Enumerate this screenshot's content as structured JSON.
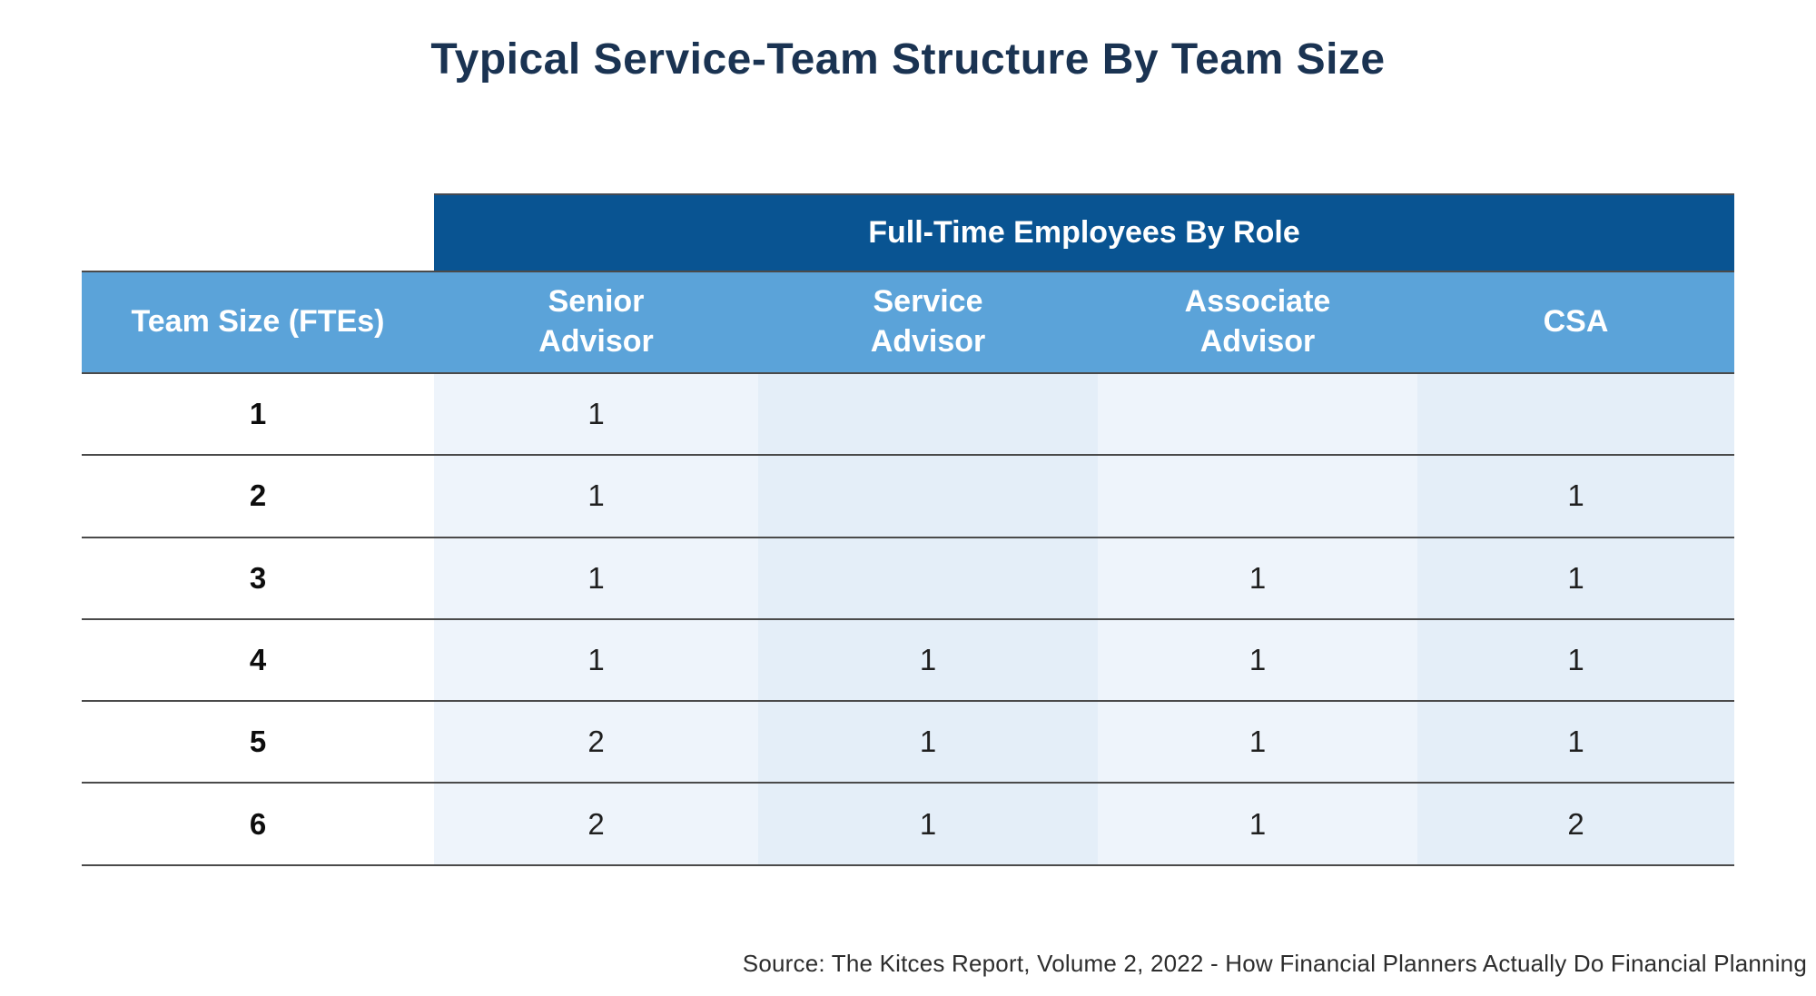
{
  "title": "Typical Service-Team Structure By Team Size",
  "chart_data": {
    "type": "table",
    "title": "Typical Service-Team Structure By Team Size",
    "group_header": "Full-Time Employees By Role",
    "columns": [
      "Team Size (FTEs)",
      "Senior\nAdvisor",
      "Service\nAdvisor",
      "Associate\nAdvisor",
      "CSA"
    ],
    "rows": [
      [
        "1",
        "1",
        "",
        "",
        ""
      ],
      [
        "2",
        "1",
        "",
        "",
        "1"
      ],
      [
        "3",
        "1",
        "",
        "1",
        "1"
      ],
      [
        "4",
        "1",
        "1",
        "1",
        "1"
      ],
      [
        "5",
        "2",
        "1",
        "1",
        "1"
      ],
      [
        "6",
        "2",
        "1",
        "1",
        "2"
      ]
    ]
  },
  "source": "Source: The Kitces Report, Volume 2, 2022 - How Financial Planners Actually Do Financial Planning",
  "colors": {
    "title_text": "#1a3352",
    "group_header_bg": "#095492",
    "column_header_bg": "#5ba3d9",
    "header_text": "#ffffff",
    "stripe_light": "#eef4fb",
    "stripe_dark": "#e4eef8",
    "row_line": "#4a4a4a"
  }
}
